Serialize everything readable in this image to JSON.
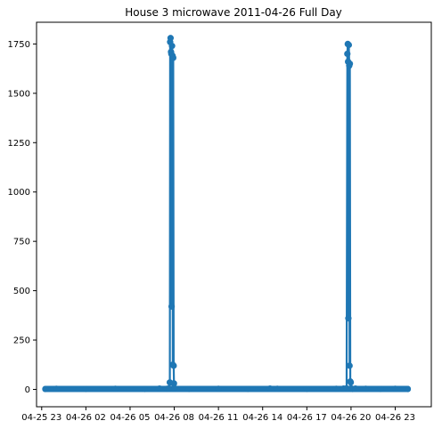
{
  "chart_data": {
    "type": "line",
    "title": "House 3 microwave 2011-04-26 Full Day",
    "xlabel": "",
    "ylabel": "",
    "x_tick_labels": [
      "04-25 23",
      "04-26 02",
      "04-26 05",
      "04-26 08",
      "04-26 11",
      "04-26 14",
      "04-26 17",
      "04-26 20",
      "04-26 23"
    ],
    "x_tick_hours": [
      23,
      26,
      29,
      32,
      35,
      38,
      41,
      44,
      47
    ],
    "xlim_hours": [
      22.65,
      49.45
    ],
    "y_tick_labels": [
      "0",
      "250",
      "500",
      "750",
      "1000",
      "1250",
      "1500",
      "1750"
    ],
    "y_ticks": [
      0,
      250,
      500,
      750,
      1000,
      1250,
      1500,
      1750
    ],
    "ylim": [
      -88,
      1860
    ],
    "grid": false,
    "legend": "none",
    "marker": "circle",
    "color": "#1f77b4",
    "series": [
      {
        "x_hours": [
          23.25,
          24.0,
          26.0,
          28.0,
          30.0,
          31.0,
          31.5,
          31.65,
          31.7,
          31.72,
          31.75,
          31.78,
          31.8,
          31.82,
          31.85,
          31.88,
          31.9,
          31.93,
          31.96,
          31.98,
          32.0,
          33.0,
          35.0,
          37.0,
          38.5,
          39.0,
          41.0,
          43.0,
          43.5,
          43.7,
          43.75,
          43.78,
          43.8,
          43.82,
          43.85,
          43.88,
          43.9,
          43.92,
          43.95,
          43.98,
          44.0,
          44.05,
          44.1,
          44.3,
          45.0,
          46.0,
          47.0,
          47.85
        ],
        "values": [
          2,
          3,
          2,
          3,
          2,
          4,
          3,
          5,
          35,
          1760,
          1780,
          1710,
          1700,
          420,
          1740,
          1690,
          125,
          1680,
          120,
          30,
          5,
          2,
          3,
          2,
          4,
          3,
          2,
          3,
          4,
          5,
          1700,
          1750,
          1660,
          360,
          1745,
          1640,
          120,
          1650,
          40,
          35,
          5,
          3,
          2,
          4,
          3,
          2,
          3,
          2
        ]
      }
    ]
  }
}
